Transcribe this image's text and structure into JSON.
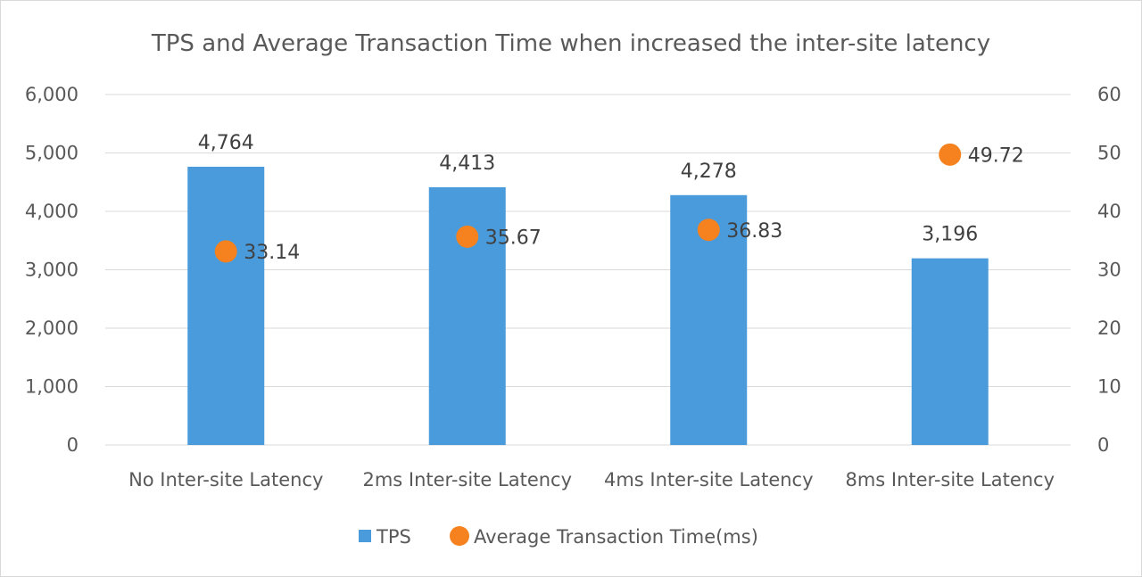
{
  "chart_data": {
    "type": "bar",
    "title": "TPS and Average Transaction Time when increased the inter-site latency",
    "categories": [
      "No Inter-site Latency",
      "2ms Inter-site Latency",
      "4ms Inter-site Latency",
      "8ms Inter-site Latency"
    ],
    "series": [
      {
        "name": "TPS",
        "type": "bar",
        "axis": "left",
        "values": [
          4764,
          4413,
          4278,
          3196
        ],
        "labels": [
          "4,764",
          "4,413",
          "4,278",
          "3,196"
        ],
        "color": "#4a9bdc"
      },
      {
        "name": "Average Transaction Time(ms)",
        "type": "scatter",
        "axis": "right",
        "values": [
          33.14,
          35.67,
          36.83,
          49.72
        ],
        "labels": [
          "33.14",
          "35.67",
          "36.83",
          "49.72"
        ],
        "color": "#f5821f"
      }
    ],
    "y_left": {
      "min": 0,
      "max": 6000,
      "ticks": [
        "0",
        "1,000",
        "2,000",
        "3,000",
        "4,000",
        "5,000",
        "6,000"
      ]
    },
    "y_right": {
      "min": 0,
      "max": 60,
      "ticks": [
        "0",
        "10",
        "20",
        "30",
        "40",
        "50",
        "60"
      ]
    },
    "grid": true,
    "legend_position": "bottom"
  }
}
